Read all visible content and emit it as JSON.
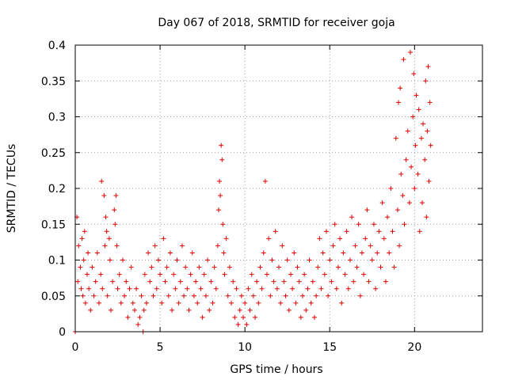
{
  "chart_data": {
    "type": "scatter",
    "title": "Day 067 of 2018, SRMTID for receiver goja",
    "xlabel": "GPS time / hours",
    "ylabel": "SRMTID / TECUs",
    "xlim": [
      0,
      24
    ],
    "ylim": [
      0,
      0.4
    ],
    "x_ticks": [
      0,
      5,
      10,
      15,
      20
    ],
    "x_tick_labels": [
      "0",
      "5",
      "10",
      "15",
      "20"
    ],
    "y_ticks": [
      0,
      0.05,
      0.1,
      0.15,
      0.2,
      0.25,
      0.3,
      0.35,
      0.4
    ],
    "y_tick_labels": [
      "0",
      "0.05",
      "0.1",
      "0.15",
      "0.2",
      "0.25",
      "0.3",
      "0.35",
      "0.4"
    ],
    "grid": true,
    "marker": "+",
    "color": "#e00000",
    "series": [
      {
        "name": "SRMTID",
        "points": [
          [
            0.0,
            0.0
          ],
          [
            0.1,
            0.16
          ],
          [
            0.15,
            0.07
          ],
          [
            0.2,
            0.12
          ],
          [
            0.3,
            0.09
          ],
          [
            0.35,
            0.06
          ],
          [
            0.4,
            0.13
          ],
          [
            0.45,
            0.05
          ],
          [
            0.5,
            0.1
          ],
          [
            0.55,
            0.14
          ],
          [
            0.6,
            0.04
          ],
          [
            0.7,
            0.08
          ],
          [
            0.75,
            0.11
          ],
          [
            0.8,
            0.06
          ],
          [
            0.9,
            0.03
          ],
          [
            1.0,
            0.09
          ],
          [
            1.1,
            0.05
          ],
          [
            1.2,
            0.07
          ],
          [
            1.3,
            0.11
          ],
          [
            1.4,
            0.04
          ],
          [
            1.5,
            0.08
          ],
          [
            1.55,
            0.21
          ],
          [
            1.6,
            0.06
          ],
          [
            1.7,
            0.19
          ],
          [
            1.75,
            0.12
          ],
          [
            1.8,
            0.16
          ],
          [
            1.85,
            0.14
          ],
          [
            1.9,
            0.05
          ],
          [
            2.0,
            0.13
          ],
          [
            2.05,
            0.1
          ],
          [
            2.1,
            0.03
          ],
          [
            2.2,
            0.07
          ],
          [
            2.3,
            0.17
          ],
          [
            2.35,
            0.15
          ],
          [
            2.4,
            0.19
          ],
          [
            2.45,
            0.12
          ],
          [
            2.5,
            0.06
          ],
          [
            2.6,
            0.08
          ],
          [
            2.7,
            0.04
          ],
          [
            2.8,
            0.1
          ],
          [
            2.9,
            0.05
          ],
          [
            3.0,
            0.07
          ],
          [
            3.1,
            0.02
          ],
          [
            3.2,
            0.06
          ],
          [
            3.3,
            0.09
          ],
          [
            3.4,
            0.04
          ],
          [
            3.5,
            0.03
          ],
          [
            3.6,
            0.06
          ],
          [
            3.7,
            0.01
          ],
          [
            3.8,
            0.02
          ],
          [
            3.9,
            0.05
          ],
          [
            4.0,
            0.0
          ],
          [
            4.05,
            0.03
          ],
          [
            4.1,
            0.08
          ],
          [
            4.2,
            0.04
          ],
          [
            4.3,
            0.11
          ],
          [
            4.4,
            0.07
          ],
          [
            4.5,
            0.09
          ],
          [
            4.6,
            0.05
          ],
          [
            4.7,
            0.12
          ],
          [
            4.8,
            0.06
          ],
          [
            4.9,
            0.1
          ],
          [
            5.0,
            0.08
          ],
          [
            5.1,
            0.04
          ],
          [
            5.2,
            0.13
          ],
          [
            5.3,
            0.07
          ],
          [
            5.4,
            0.09
          ],
          [
            5.5,
            0.05
          ],
          [
            5.6,
            0.11
          ],
          [
            5.7,
            0.03
          ],
          [
            5.8,
            0.08
          ],
          [
            5.9,
            0.06
          ],
          [
            6.0,
            0.1
          ],
          [
            6.1,
            0.04
          ],
          [
            6.2,
            0.07
          ],
          [
            6.3,
            0.12
          ],
          [
            6.4,
            0.05
          ],
          [
            6.5,
            0.09
          ],
          [
            6.6,
            0.06
          ],
          [
            6.7,
            0.03
          ],
          [
            6.8,
            0.08
          ],
          [
            6.9,
            0.11
          ],
          [
            7.0,
            0.05
          ],
          [
            7.1,
            0.07
          ],
          [
            7.2,
            0.04
          ],
          [
            7.3,
            0.09
          ],
          [
            7.4,
            0.06
          ],
          [
            7.5,
            0.02
          ],
          [
            7.6,
            0.08
          ],
          [
            7.7,
            0.05
          ],
          [
            7.8,
            0.1
          ],
          [
            7.9,
            0.03
          ],
          [
            8.0,
            0.07
          ],
          [
            8.1,
            0.04
          ],
          [
            8.2,
            0.09
          ],
          [
            8.3,
            0.06
          ],
          [
            8.4,
            0.12
          ],
          [
            8.45,
            0.17
          ],
          [
            8.5,
            0.21
          ],
          [
            8.55,
            0.19
          ],
          [
            8.6,
            0.26
          ],
          [
            8.65,
            0.24
          ],
          [
            8.7,
            0.15
          ],
          [
            8.75,
            0.11
          ],
          [
            8.8,
            0.08
          ],
          [
            8.9,
            0.13
          ],
          [
            9.0,
            0.05
          ],
          [
            9.1,
            0.09
          ],
          [
            9.2,
            0.04
          ],
          [
            9.3,
            0.07
          ],
          [
            9.4,
            0.02
          ],
          [
            9.5,
            0.06
          ],
          [
            9.6,
            0.01
          ],
          [
            9.7,
            0.03
          ],
          [
            9.8,
            0.05
          ],
          [
            9.9,
            0.02
          ],
          [
            10.0,
            0.04
          ],
          [
            10.1,
            0.01
          ],
          [
            10.2,
            0.06
          ],
          [
            10.3,
            0.03
          ],
          [
            10.4,
            0.08
          ],
          [
            10.5,
            0.05
          ],
          [
            10.6,
            0.02
          ],
          [
            10.7,
            0.07
          ],
          [
            10.8,
            0.04
          ],
          [
            10.9,
            0.09
          ],
          [
            11.0,
            0.06
          ],
          [
            11.1,
            0.11
          ],
          [
            11.2,
            0.21
          ],
          [
            11.3,
            0.08
          ],
          [
            11.4,
            0.13
          ],
          [
            11.5,
            0.05
          ],
          [
            11.6,
            0.1
          ],
          [
            11.7,
            0.07
          ],
          [
            11.8,
            0.14
          ],
          [
            11.9,
            0.06
          ],
          [
            12.0,
            0.09
          ],
          [
            12.1,
            0.04
          ],
          [
            12.2,
            0.12
          ],
          [
            12.3,
            0.07
          ],
          [
            12.4,
            0.05
          ],
          [
            12.5,
            0.1
          ],
          [
            12.6,
            0.03
          ],
          [
            12.7,
            0.08
          ],
          [
            12.8,
            0.06
          ],
          [
            12.9,
            0.11
          ],
          [
            13.0,
            0.04
          ],
          [
            13.1,
            0.09
          ],
          [
            13.2,
            0.07
          ],
          [
            13.3,
            0.02
          ],
          [
            13.4,
            0.05
          ],
          [
            13.5,
            0.08
          ],
          [
            13.6,
            0.03
          ],
          [
            13.7,
            0.06
          ],
          [
            13.8,
            0.1
          ],
          [
            13.9,
            0.04
          ],
          [
            14.0,
            0.07
          ],
          [
            14.1,
            0.02
          ],
          [
            14.2,
            0.05
          ],
          [
            14.3,
            0.09
          ],
          [
            14.4,
            0.13
          ],
          [
            14.5,
            0.06
          ],
          [
            14.6,
            0.11
          ],
          [
            14.7,
            0.08
          ],
          [
            14.8,
            0.14
          ],
          [
            14.9,
            0.05
          ],
          [
            15.0,
            0.1
          ],
          [
            15.1,
            0.07
          ],
          [
            15.2,
            0.12
          ],
          [
            15.3,
            0.15
          ],
          [
            15.4,
            0.06
          ],
          [
            15.5,
            0.09
          ],
          [
            15.6,
            0.13
          ],
          [
            15.7,
            0.04
          ],
          [
            15.8,
            0.11
          ],
          [
            15.9,
            0.08
          ],
          [
            16.0,
            0.14
          ],
          [
            16.1,
            0.06
          ],
          [
            16.2,
            0.1
          ],
          [
            16.3,
            0.16
          ],
          [
            16.4,
            0.07
          ],
          [
            16.5,
            0.12
          ],
          [
            16.6,
            0.09
          ],
          [
            16.7,
            0.15
          ],
          [
            16.8,
            0.05
          ],
          [
            16.9,
            0.11
          ],
          [
            17.0,
            0.08
          ],
          [
            17.1,
            0.13
          ],
          [
            17.2,
            0.17
          ],
          [
            17.3,
            0.07
          ],
          [
            17.4,
            0.12
          ],
          [
            17.5,
            0.1
          ],
          [
            17.6,
            0.15
          ],
          [
            17.7,
            0.06
          ],
          [
            17.8,
            0.11
          ],
          [
            17.9,
            0.14
          ],
          [
            18.0,
            0.09
          ],
          [
            18.1,
            0.18
          ],
          [
            18.2,
            0.13
          ],
          [
            18.3,
            0.07
          ],
          [
            18.4,
            0.16
          ],
          [
            18.5,
            0.11
          ],
          [
            18.6,
            0.2
          ],
          [
            18.7,
            0.14
          ],
          [
            18.8,
            0.09
          ],
          [
            18.9,
            0.27
          ],
          [
            19.0,
            0.17
          ],
          [
            19.05,
            0.32
          ],
          [
            19.1,
            0.12
          ],
          [
            19.15,
            0.34
          ],
          [
            19.2,
            0.22
          ],
          [
            19.3,
            0.19
          ],
          [
            19.35,
            0.38
          ],
          [
            19.4,
            0.15
          ],
          [
            19.5,
            0.24
          ],
          [
            19.6,
            0.28
          ],
          [
            19.7,
            0.18
          ],
          [
            19.75,
            0.39
          ],
          [
            19.8,
            0.23
          ],
          [
            19.9,
            0.3
          ],
          [
            19.95,
            0.36
          ],
          [
            20.0,
            0.2
          ],
          [
            20.05,
            0.26
          ],
          [
            20.1,
            0.33
          ],
          [
            20.2,
            0.22
          ],
          [
            20.25,
            0.31
          ],
          [
            20.3,
            0.14
          ],
          [
            20.4,
            0.27
          ],
          [
            20.45,
            0.18
          ],
          [
            20.5,
            0.29
          ],
          [
            20.6,
            0.24
          ],
          [
            20.65,
            0.35
          ],
          [
            20.7,
            0.16
          ],
          [
            20.75,
            0.28
          ],
          [
            20.8,
            0.37
          ],
          [
            20.85,
            0.21
          ],
          [
            20.9,
            0.32
          ],
          [
            20.95,
            0.26
          ]
        ]
      }
    ]
  }
}
